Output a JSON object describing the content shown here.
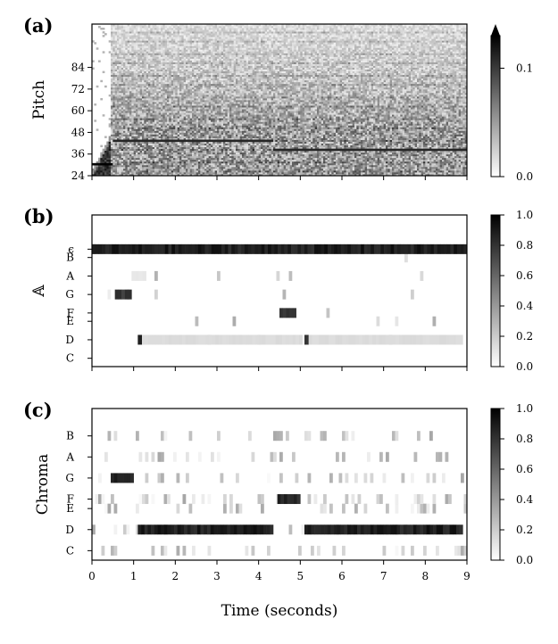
{
  "figure": {
    "xlabel": "Time (seconds)",
    "xticks": [
      "0",
      "1",
      "2",
      "3",
      "4",
      "5",
      "6",
      "7",
      "8",
      "9"
    ]
  },
  "chart_data": [
    {
      "type": "heatmap",
      "panel_label": "(a)",
      "ylabel": "Pitch",
      "xlim": [
        0,
        9
      ],
      "ylim": [
        24,
        108
      ],
      "yticks": [
        "24",
        "36",
        "48",
        "60",
        "72",
        "84"
      ],
      "colorbar": {
        "range": [
          0.0,
          0.13
        ],
        "ticks": [
          "0.0",
          "0.1"
        ],
        "extend": "max"
      },
      "colormap": [
        "#ffffff",
        "#000000"
      ],
      "notes": [
        {
          "start": 0.0,
          "end": 0.5,
          "pitch": 30,
          "level": 1.0
        },
        {
          "start": 0.5,
          "end": 4.35,
          "pitch": 43,
          "level": 0.85
        },
        {
          "start": 4.35,
          "end": 9.0,
          "pitch": 38,
          "level": 0.85
        }
      ]
    },
    {
      "type": "heatmap",
      "panel_label": "(b)",
      "ylabel": "𝔸",
      "xlim": [
        0,
        9
      ],
      "rows": [
        "C",
        "D",
        "E",
        "F",
        "G",
        "A",
        "B",
        "ϵ"
      ],
      "colorbar": {
        "range": [
          0.0,
          1.0
        ],
        "ticks": [
          "0.0",
          "0.2",
          "0.4",
          "0.6",
          "0.8",
          "1.0"
        ]
      },
      "colormap": [
        "#ffffff",
        "#000000"
      ],
      "activations": [
        {
          "row": "ϵ",
          "start": 0.0,
          "end": 9.0,
          "value": 0.95
        },
        {
          "row": "G",
          "start": 0.55,
          "end": 0.95,
          "value": 0.85
        },
        {
          "row": "D",
          "start": 1.1,
          "end": 1.2,
          "value": 0.9
        },
        {
          "row": "D",
          "start": 1.2,
          "end": 5.05,
          "value": 0.15
        },
        {
          "row": "F",
          "start": 4.5,
          "end": 4.9,
          "value": 0.85
        },
        {
          "row": "D",
          "start": 5.1,
          "end": 5.2,
          "value": 0.9
        },
        {
          "row": "D",
          "start": 5.2,
          "end": 8.9,
          "value": 0.15
        },
        {
          "row": "A",
          "start": 0.95,
          "end": 1.3,
          "value": 0.1
        }
      ]
    },
    {
      "type": "heatmap",
      "panel_label": "(c)",
      "ylabel": "Chroma",
      "xlim": [
        0,
        9
      ],
      "rows": [
        "C",
        "D",
        "E",
        "F",
        "G",
        "A",
        "B"
      ],
      "colorbar": {
        "range": [
          0.0,
          1.0
        ],
        "ticks": [
          "0.0",
          "0.2",
          "0.4",
          "0.6",
          "0.8",
          "1.0"
        ]
      },
      "colormap": [
        "#ffffff",
        "#000000"
      ],
      "activations": [
        {
          "row": "G",
          "start": 0.45,
          "end": 1.0,
          "value": 0.95
        },
        {
          "row": "D",
          "start": 1.1,
          "end": 4.35,
          "value": 0.95
        },
        {
          "row": "F",
          "start": 4.45,
          "end": 5.0,
          "value": 0.9
        },
        {
          "row": "D",
          "start": 5.1,
          "end": 8.9,
          "value": 0.95
        }
      ]
    }
  ]
}
